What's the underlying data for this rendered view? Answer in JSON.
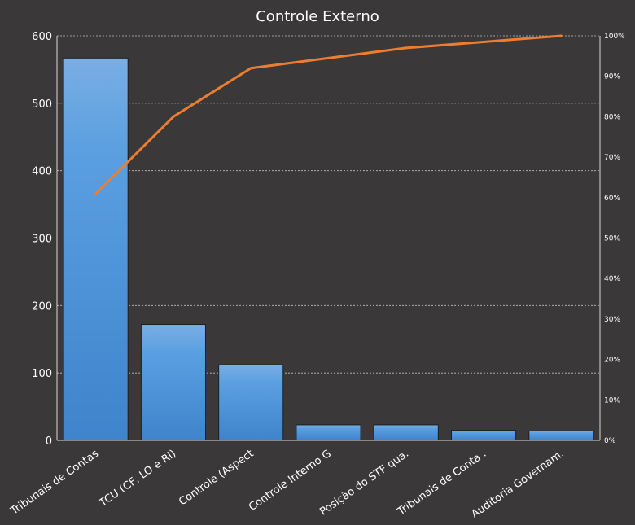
{
  "chart_data": {
    "type": "bar",
    "title": "Controle Externo",
    "categories": [
      "Tribunais de Contas",
      "TCU (CF, LO e RI)",
      "Controle (Aspect",
      "Controle Interno G",
      "Posição do STF qua.",
      "Tribunais de Conta .",
      "Auditoria Governam."
    ],
    "series": [
      {
        "type": "bar",
        "values": [
          567,
          172,
          112,
          23,
          23,
          15,
          14
        ]
      },
      {
        "type": "line",
        "axis": "secondary",
        "values": [
          61,
          80,
          92,
          94.5,
          97,
          98.5,
          100
        ]
      }
    ],
    "ylim": [
      0,
      600
    ],
    "yticks": [
      "0",
      "100",
      "200",
      "300",
      "400",
      "500",
      "600"
    ],
    "y2lim": [
      0,
      100
    ],
    "y2ticks": [
      "0%",
      "10%",
      "20%",
      "30%",
      "40%",
      "50%",
      "60%",
      "70%",
      "80%",
      "90%",
      "100%"
    ],
    "grid": true,
    "legend": "none",
    "colors": {
      "bar": "#4f95d8",
      "line": "#ed7d31",
      "background": "#3a3838",
      "grid": "#bfbfbf",
      "text": "#ffffff"
    }
  }
}
